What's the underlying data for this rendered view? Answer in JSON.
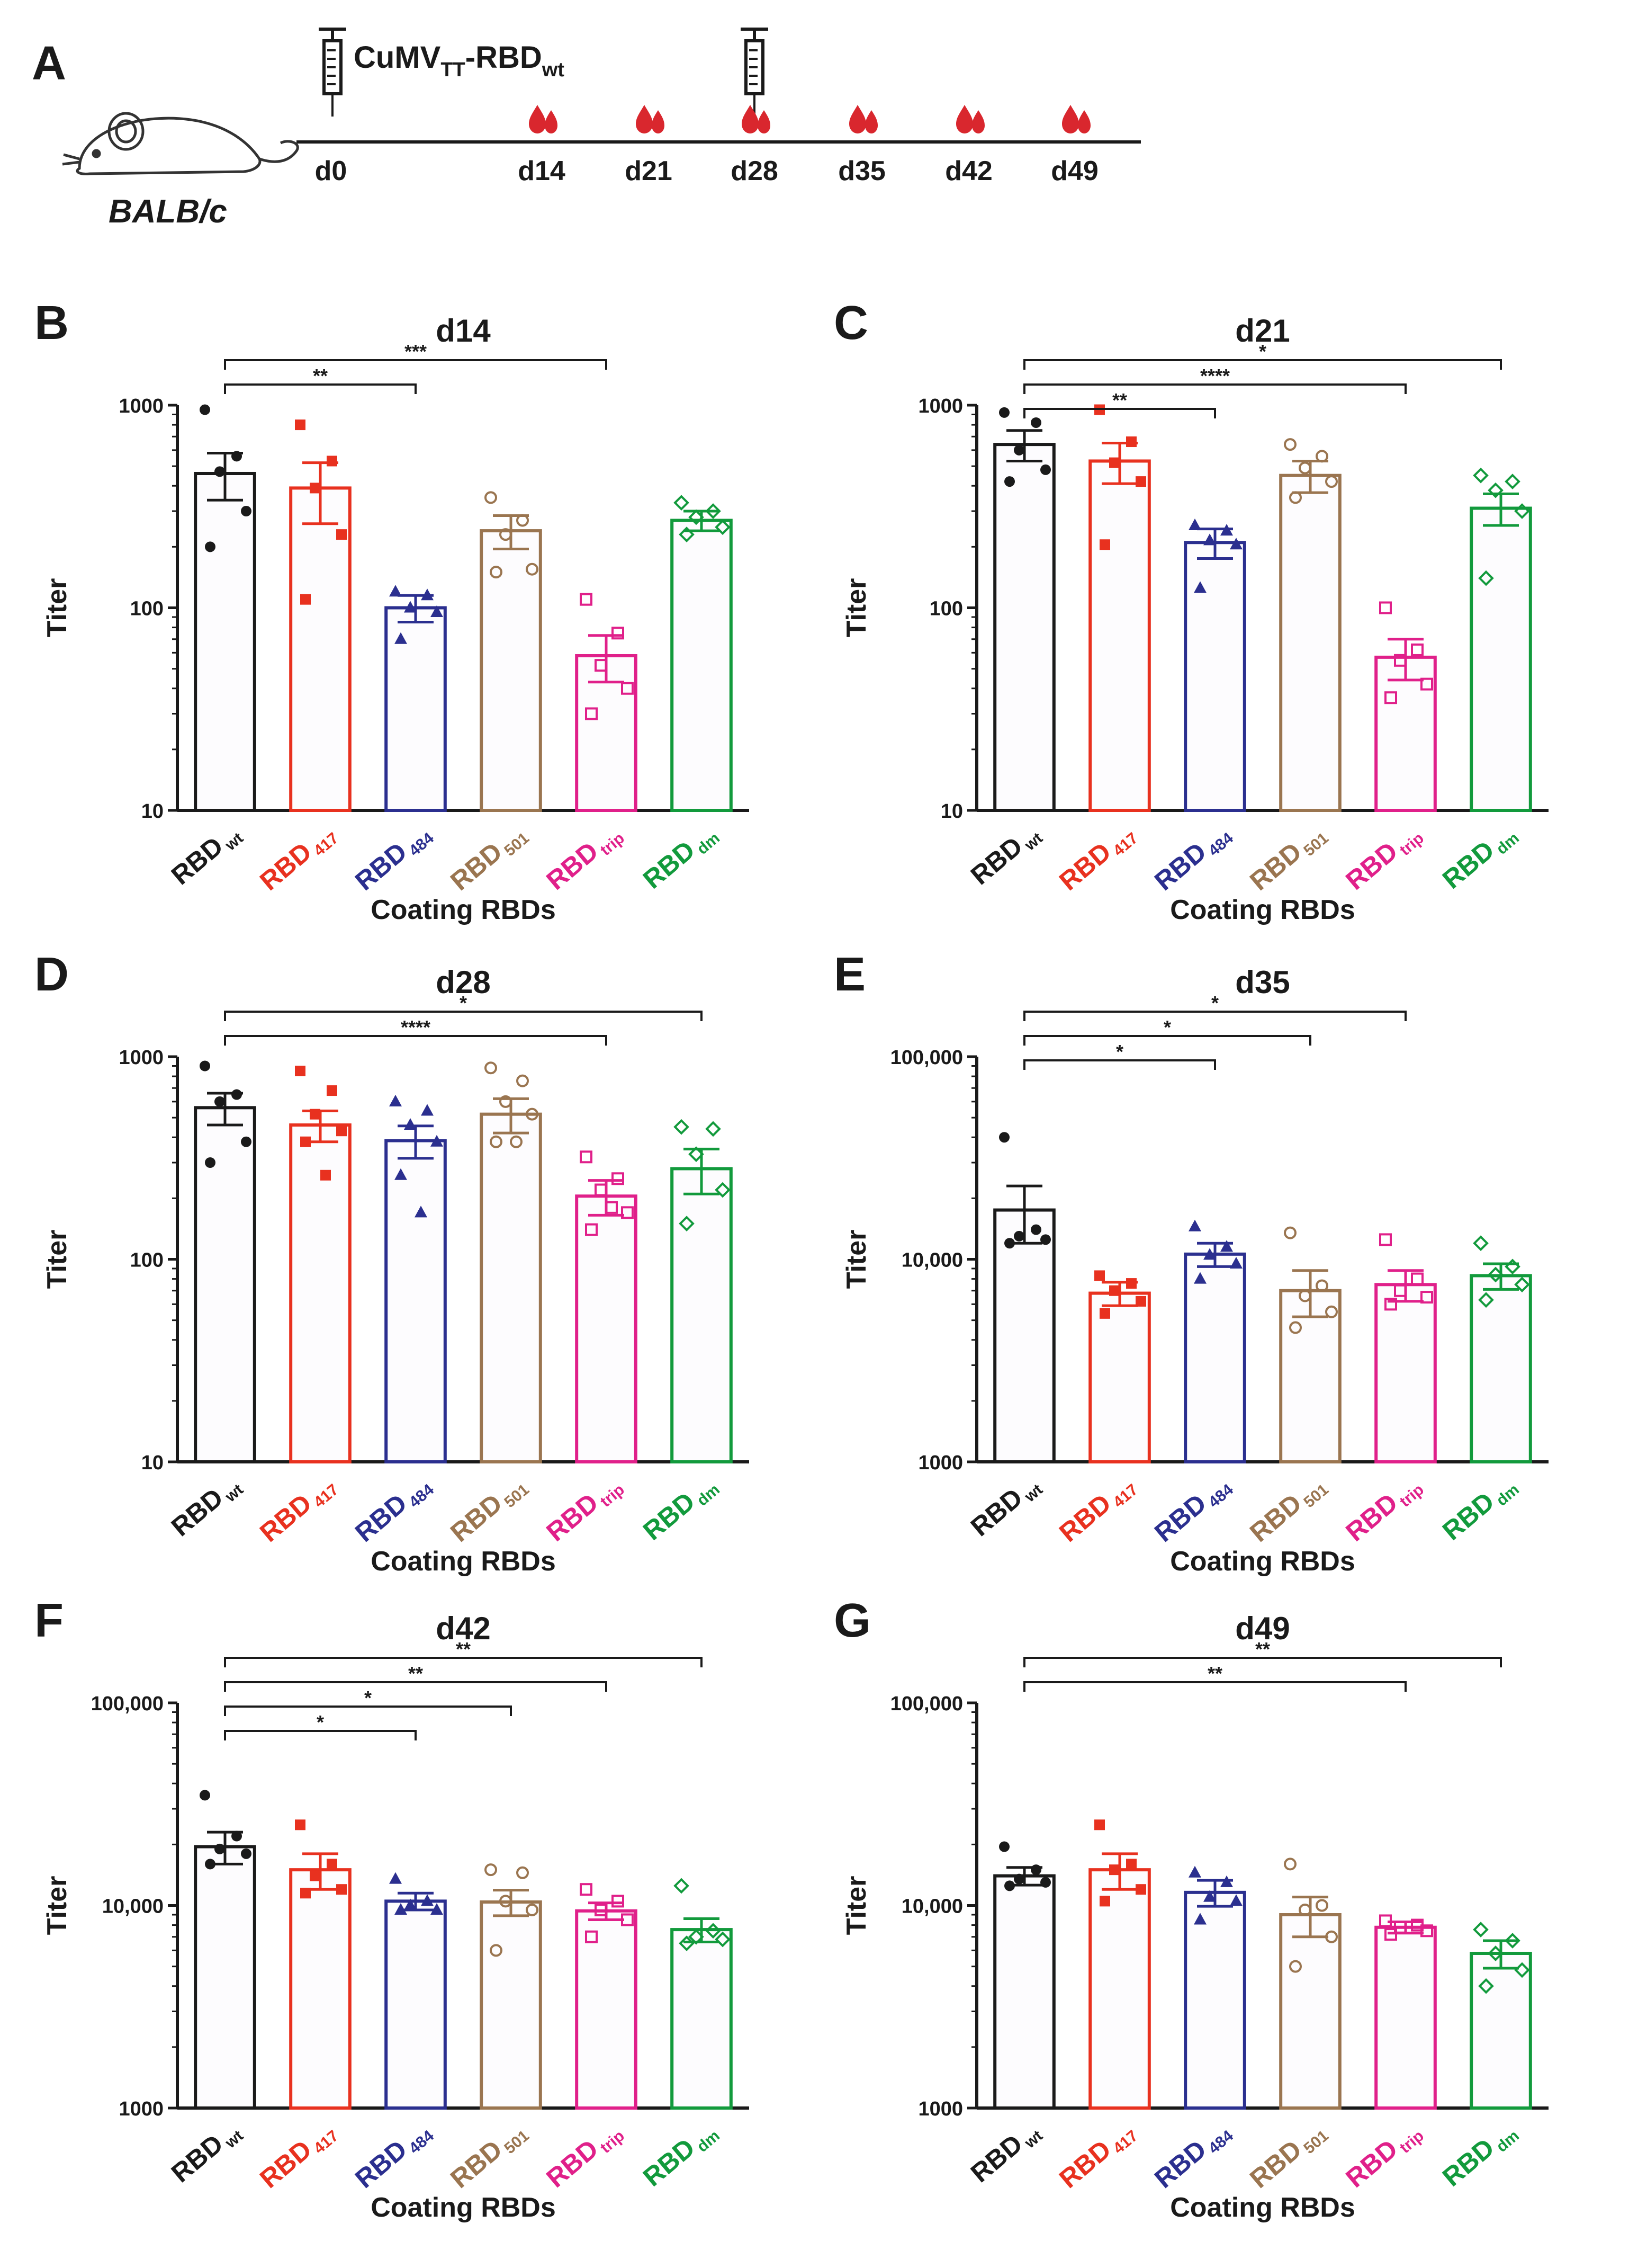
{
  "colors": {
    "wt": "#1a1a1a",
    "r417": "#e8311f",
    "r484": "#2b2f8f",
    "r501": "#9a7550",
    "trip": "#e0208a",
    "dm": "#129a3c",
    "drop": "#d9272e",
    "axis": "#1a1a1a"
  },
  "timeline": {
    "panel_label": "A",
    "vaccine_main": "CuMV",
    "vaccine_sub1": "TT",
    "vaccine_mid": "-RBD",
    "vaccine_sub2": "wt",
    "mouse_label": "BALB/c",
    "days": [
      "d0",
      "d14",
      "d21",
      "d28",
      "d35",
      "d42",
      "d49"
    ],
    "injection_days": [
      "d0",
      "d28"
    ],
    "bleed_days": [
      "d14",
      "d21",
      "d28",
      "d35",
      "d42",
      "d49"
    ]
  },
  "chart_data": [
    {
      "panel": "B",
      "type": "bar",
      "title": "d14",
      "xlabel": "Coating RBDs",
      "ylabel": "Titer",
      "yscale": "log",
      "ylim": [
        10,
        1000
      ],
      "yticks": [
        10,
        100,
        1000
      ],
      "ytick_labels": [
        "10",
        "100",
        "1000"
      ],
      "categories": [
        {
          "base": "RBD",
          "sub": "wt",
          "key": "wt"
        },
        {
          "base": "RBD",
          "sub": "417",
          "key": "r417"
        },
        {
          "base": "RBD",
          "sub": "484",
          "key": "r484"
        },
        {
          "base": "RBD",
          "sub": "501",
          "key": "r501"
        },
        {
          "base": "RBD",
          "sub": "trip",
          "key": "trip"
        },
        {
          "base": "RBD",
          "sub": "dm",
          "key": "dm"
        }
      ],
      "means": [
        460,
        390,
        100,
        240,
        58,
        270
      ],
      "sem": [
        120,
        130,
        15,
        45,
        15,
        30
      ],
      "points": [
        [
          950,
          560,
          470,
          300,
          200
        ],
        [
          800,
          530,
          390,
          230,
          110
        ],
        [
          120,
          115,
          100,
          95,
          70
        ],
        [
          350,
          270,
          230,
          155,
          150
        ],
        [
          110,
          75,
          52,
          40,
          30
        ],
        [
          330,
          300,
          280,
          250,
          230
        ]
      ],
      "significance": [
        {
          "from": 0,
          "to": 2,
          "label": "**"
        },
        {
          "from": 0,
          "to": 4,
          "label": "***"
        }
      ]
    },
    {
      "panel": "C",
      "type": "bar",
      "title": "d21",
      "xlabel": "Coating RBDs",
      "ylabel": "Titer",
      "yscale": "log",
      "ylim": [
        10,
        1000
      ],
      "yticks": [
        10,
        100,
        1000
      ],
      "ytick_labels": [
        "10",
        "100",
        "1000"
      ],
      "categories": [
        {
          "base": "RBD",
          "sub": "wt",
          "key": "wt"
        },
        {
          "base": "RBD",
          "sub": "417",
          "key": "r417"
        },
        {
          "base": "RBD",
          "sub": "484",
          "key": "r484"
        },
        {
          "base": "RBD",
          "sub": "501",
          "key": "r501"
        },
        {
          "base": "RBD",
          "sub": "trip",
          "key": "trip"
        },
        {
          "base": "RBD",
          "sub": "dm",
          "key": "dm"
        }
      ],
      "means": [
        640,
        530,
        210,
        450,
        57,
        310
      ],
      "sem": [
        110,
        120,
        35,
        80,
        13,
        55
      ],
      "points": [
        [
          920,
          820,
          600,
          480,
          420
        ],
        [
          950,
          660,
          520,
          420,
          205
        ],
        [
          255,
          240,
          215,
          205,
          125
        ],
        [
          640,
          560,
          490,
          420,
          350
        ],
        [
          100,
          62,
          55,
          42,
          36
        ],
        [
          450,
          420,
          380,
          300,
          140
        ]
      ],
      "significance": [
        {
          "from": 0,
          "to": 2,
          "label": "**"
        },
        {
          "from": 0,
          "to": 4,
          "label": "****"
        },
        {
          "from": 0,
          "to": 5,
          "label": "*"
        }
      ]
    },
    {
      "panel": "D",
      "type": "bar",
      "title": "d28",
      "xlabel": "Coating RBDs",
      "ylabel": "Titer",
      "yscale": "log",
      "ylim": [
        10,
        1000
      ],
      "yticks": [
        10,
        100,
        1000
      ],
      "ytick_labels": [
        "10",
        "100",
        "1000"
      ],
      "categories": [
        {
          "base": "RBD",
          "sub": "wt",
          "key": "wt"
        },
        {
          "base": "RBD",
          "sub": "417",
          "key": "r417"
        },
        {
          "base": "RBD",
          "sub": "484",
          "key": "r484"
        },
        {
          "base": "RBD",
          "sub": "501",
          "key": "r501"
        },
        {
          "base": "RBD",
          "sub": "trip",
          "key": "trip"
        },
        {
          "base": "RBD",
          "sub": "dm",
          "key": "dm"
        }
      ],
      "means": [
        560,
        460,
        385,
        520,
        205,
        280
      ],
      "sem": [
        100,
        80,
        70,
        100,
        40,
        70
      ],
      "points": [
        [
          900,
          650,
          600,
          380,
          300
        ],
        [
          850,
          680,
          520,
          430,
          380,
          260
        ],
        [
          600,
          540,
          460,
          380,
          260,
          170
        ],
        [
          880,
          760,
          600,
          520,
          380,
          380
        ],
        [
          320,
          250,
          220,
          170,
          140,
          180
        ],
        [
          450,
          440,
          330,
          220,
          150
        ]
      ],
      "significance": [
        {
          "from": 0,
          "to": 4,
          "label": "****"
        },
        {
          "from": 0,
          "to": 5,
          "label": "*"
        }
      ]
    },
    {
      "panel": "E",
      "type": "bar",
      "title": "d35",
      "xlabel": "Coating RBDs",
      "ylabel": "Titer",
      "yscale": "log",
      "ylim": [
        1000,
        100000
      ],
      "yticks": [
        1000,
        10000,
        100000
      ],
      "ytick_labels": [
        "1000",
        "10,000",
        "100,000"
      ],
      "categories": [
        {
          "base": "RBD",
          "sub": "wt",
          "key": "wt"
        },
        {
          "base": "RBD",
          "sub": "417",
          "key": "r417"
        },
        {
          "base": "RBD",
          "sub": "484",
          "key": "r484"
        },
        {
          "base": "RBD",
          "sub": "501",
          "key": "r501"
        },
        {
          "base": "RBD",
          "sub": "trip",
          "key": "trip"
        },
        {
          "base": "RBD",
          "sub": "dm",
          "key": "dm"
        }
      ],
      "means": [
        17500,
        6800,
        10600,
        7000,
        7500,
        8300
      ],
      "sem": [
        5500,
        900,
        1400,
        1800,
        1300,
        1200
      ],
      "points": [
        [
          40000,
          14000,
          13000,
          12500,
          12000
        ],
        [
          8300,
          7600,
          7000,
          6200,
          5400
        ],
        [
          14500,
          11500,
          10500,
          9500,
          8000
        ],
        [
          13500,
          7400,
          6600,
          5500,
          4600
        ],
        [
          12500,
          8000,
          7000,
          6500,
          6000
        ],
        [
          12000,
          9200,
          8400,
          7500,
          6300
        ]
      ],
      "significance": [
        {
          "from": 0,
          "to": 2,
          "label": "*"
        },
        {
          "from": 0,
          "to": 3,
          "label": "*"
        },
        {
          "from": 0,
          "to": 4,
          "label": "*"
        }
      ]
    },
    {
      "panel": "F",
      "type": "bar",
      "title": "d42",
      "xlabel": "Coating RBDs",
      "ylabel": "Titer",
      "yscale": "log",
      "ylim": [
        1000,
        100000
      ],
      "yticks": [
        1000,
        10000,
        100000
      ],
      "ytick_labels": [
        "1000",
        "10,000",
        "100,000"
      ],
      "categories": [
        {
          "base": "RBD",
          "sub": "wt",
          "key": "wt"
        },
        {
          "base": "RBD",
          "sub": "417",
          "key": "r417"
        },
        {
          "base": "RBD",
          "sub": "484",
          "key": "r484"
        },
        {
          "base": "RBD",
          "sub": "501",
          "key": "r501"
        },
        {
          "base": "RBD",
          "sub": "trip",
          "key": "trip"
        },
        {
          "base": "RBD",
          "sub": "dm",
          "key": "dm"
        }
      ],
      "means": [
        19500,
        15000,
        10500,
        10400,
        9400,
        7600
      ],
      "sem": [
        3500,
        3000,
        1000,
        1500,
        900,
        1000
      ],
      "points": [
        [
          35000,
          22000,
          19000,
          18000,
          16000
        ],
        [
          25000,
          16000,
          14000,
          12000,
          11500
        ],
        [
          13500,
          10500,
          10000,
          9500,
          9500
        ],
        [
          15000,
          14500,
          10500,
          9500,
          6000
        ],
        [
          12000,
          10500,
          9500,
          8500,
          7000
        ],
        [
          12500,
          7500,
          7000,
          6800,
          6500
        ]
      ],
      "significance": [
        {
          "from": 0,
          "to": 2,
          "label": "*"
        },
        {
          "from": 0,
          "to": 3,
          "label": "*"
        },
        {
          "from": 0,
          "to": 4,
          "label": "**"
        },
        {
          "from": 0,
          "to": 5,
          "label": "**"
        }
      ]
    },
    {
      "panel": "G",
      "type": "bar",
      "title": "d49",
      "xlabel": "Coating RBDs",
      "ylabel": "Titer",
      "yscale": "log",
      "ylim": [
        1000,
        100000
      ],
      "yticks": [
        1000,
        10000,
        100000
      ],
      "ytick_labels": [
        "1000",
        "10,000",
        "100,000"
      ],
      "categories": [
        {
          "base": "RBD",
          "sub": "wt",
          "key": "wt"
        },
        {
          "base": "RBD",
          "sub": "417",
          "key": "r417"
        },
        {
          "base": "RBD",
          "sub": "484",
          "key": "r484"
        },
        {
          "base": "RBD",
          "sub": "501",
          "key": "r501"
        },
        {
          "base": "RBD",
          "sub": "trip",
          "key": "trip"
        },
        {
          "base": "RBD",
          "sub": "dm",
          "key": "dm"
        }
      ],
      "means": [
        14000,
        15000,
        11600,
        9000,
        7800,
        5800
      ],
      "sem": [
        1400,
        3000,
        1700,
        2000,
        500,
        900
      ],
      "points": [
        [
          19500,
          15000,
          13500,
          13000,
          12500
        ],
        [
          25000,
          16000,
          15000,
          12000,
          10500
        ],
        [
          14500,
          13000,
          11000,
          10500,
          8500
        ],
        [
          16000,
          10000,
          9500,
          7000,
          5000
        ],
        [
          8400,
          8000,
          7800,
          7500,
          7200
        ],
        [
          7600,
          6700,
          5800,
          4800,
          4000
        ]
      ],
      "significance": [
        {
          "from": 0,
          "to": 4,
          "label": "**"
        },
        {
          "from": 0,
          "to": 5,
          "label": "**"
        }
      ]
    }
  ]
}
